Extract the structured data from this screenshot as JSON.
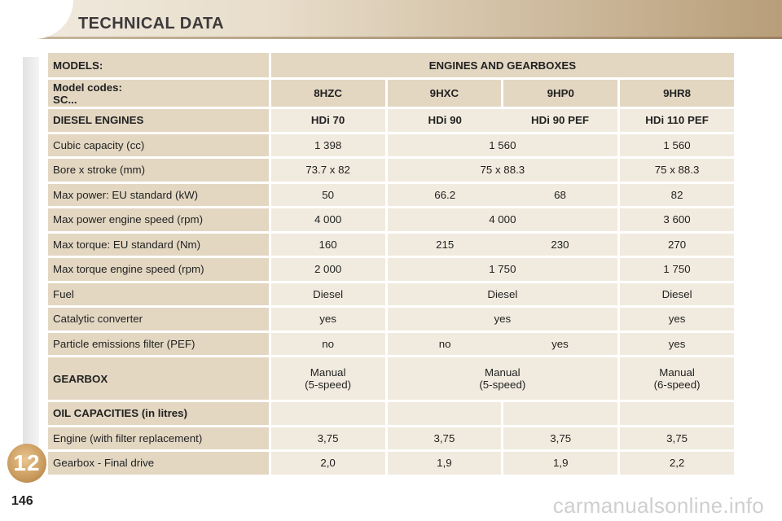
{
  "page": {
    "title": "TECHNICAL DATA",
    "chapter": "12",
    "page_number": "146",
    "watermark": "carmanualsonline.info"
  },
  "table": {
    "models_label": "MODELS:",
    "engines_label": "ENGINES AND GEARBOXES",
    "model_codes_label": "Model codes:",
    "sc_label": "SC...",
    "codes": [
      "8HZC",
      "9HXC",
      "9HP0",
      "9HR8"
    ],
    "diesel": {
      "title": "DIESEL ENGINES",
      "engines": [
        "HDi 70",
        "HDi 90",
        "HDi 90 PEF",
        "HDi 110 PEF"
      ],
      "rows": [
        {
          "label": "Cubic capacity (cc)",
          "c1": "1 398",
          "c2": "1 560",
          "c4": "1 560"
        },
        {
          "label": "Bore x stroke (mm)",
          "c1": "73.7 x 82",
          "c2": "75 x 88.3",
          "c4": "75 x 88.3"
        },
        {
          "label": "Max power: EU standard (kW)",
          "c1": "50",
          "c2a": "66.2",
          "c2b": "68",
          "c4": "82"
        },
        {
          "label": "Max power engine speed (rpm)",
          "c1": "4 000",
          "c2": "4 000",
          "c4": "3 600"
        },
        {
          "label": "Max torque: EU standard (Nm)",
          "c1": "160",
          "c2a": "215",
          "c2b": "230",
          "c4": "270"
        },
        {
          "label": "Max torque engine speed (rpm)",
          "c1": "2 000",
          "c2": "1 750",
          "c4": "1 750"
        },
        {
          "label": "Fuel",
          "c1": "Diesel",
          "c2": "Diesel",
          "c4": "Diesel"
        },
        {
          "label": "Catalytic converter",
          "c1": "yes",
          "c2": "yes",
          "c4": "yes"
        },
        {
          "label": "Particle emissions filter (PEF)",
          "c1": "no",
          "c2a": "no",
          "c2b": "yes",
          "c4": "yes"
        }
      ]
    },
    "gearbox": {
      "label": "GEARBOX",
      "c1": [
        "Manual",
        "(5-speed)"
      ],
      "c2": [
        "Manual",
        "(5-speed)"
      ],
      "c4": [
        "Manual",
        "(6-speed)"
      ]
    },
    "oil": {
      "title": "OIL CAPACITIES (in litres)",
      "rows": [
        {
          "label": "Engine (with filter replacement)",
          "values": [
            "3,75",
            "3,75",
            "3,75",
            "3,75"
          ]
        },
        {
          "label": "Gearbox - Final drive",
          "values": [
            "2,0",
            "1,9",
            "1,9",
            "2,2"
          ]
        }
      ]
    }
  }
}
